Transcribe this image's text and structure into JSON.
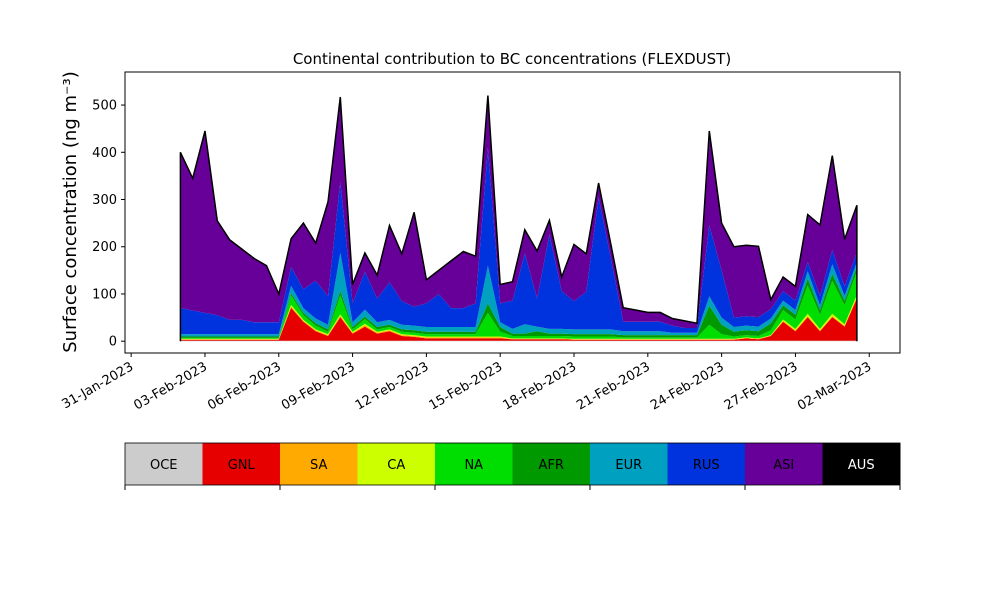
{
  "chart_data": {
    "type": "area",
    "stacked": true,
    "title": "Continental contribution to BC concentrations (FLEXDUST)",
    "ylabel": "Surface concentration (ng m⁻³)",
    "xlabel": "",
    "ylim": [
      -25,
      570
    ],
    "xlim": [
      "2023-01-30T18:00",
      "2023-03-03T06:00"
    ],
    "yticks": [
      0,
      100,
      200,
      300,
      400,
      500
    ],
    "xtick_labels": [
      "31-Jan-2023",
      "03-Feb-2023",
      "06-Feb-2023",
      "09-Feb-2023",
      "12-Feb-2023",
      "15-Feb-2023",
      "18-Feb-2023",
      "21-Feb-2023",
      "24-Feb-2023",
      "27-Feb-2023",
      "02-Mar-2023"
    ],
    "xtick_dates": [
      "2023-01-31",
      "2023-02-03",
      "2023-02-06",
      "2023-02-09",
      "2023-02-12",
      "2023-02-15",
      "2023-02-18",
      "2023-02-21",
      "2023-02-24",
      "2023-02-27",
      "2023-03-02"
    ],
    "grid": false,
    "legend_position": "below",
    "total_line_color": "#000000",
    "x": [
      "2023-02-02",
      "2023-02-02T12:00",
      "2023-02-03",
      "2023-02-03T12:00",
      "2023-02-04",
      "2023-02-04T12:00",
      "2023-02-05",
      "2023-02-05T12:00",
      "2023-02-06",
      "2023-02-06T12:00",
      "2023-02-07",
      "2023-02-07T12:00",
      "2023-02-08",
      "2023-02-08T12:00",
      "2023-02-09",
      "2023-02-09T12:00",
      "2023-02-10",
      "2023-02-10T12:00",
      "2023-02-11",
      "2023-02-11T12:00",
      "2023-02-12",
      "2023-02-12T12:00",
      "2023-02-13",
      "2023-02-13T12:00",
      "2023-02-14",
      "2023-02-14T12:00",
      "2023-02-15",
      "2023-02-15T12:00",
      "2023-02-16",
      "2023-02-16T12:00",
      "2023-02-17",
      "2023-02-17T12:00",
      "2023-02-18",
      "2023-02-18T12:00",
      "2023-02-19",
      "2023-02-19T12:00",
      "2023-02-20",
      "2023-02-20T12:00",
      "2023-02-21",
      "2023-02-21T12:00",
      "2023-02-22",
      "2023-02-22T12:00",
      "2023-02-23",
      "2023-02-23T12:00",
      "2023-02-24",
      "2023-02-24T12:00",
      "2023-02-25",
      "2023-02-25T12:00",
      "2023-02-26",
      "2023-02-26T12:00",
      "2023-02-27",
      "2023-02-27T12:00",
      "2023-02-28",
      "2023-02-28T12:00",
      "2023-03-01",
      "2023-03-01T12:00"
    ],
    "series": [
      {
        "name": "OCE",
        "color": "#cccccc",
        "values": [
          1,
          1,
          1,
          1,
          1,
          1,
          1,
          1,
          1,
          1,
          1,
          1,
          1,
          1,
          1,
          1,
          1,
          1,
          1,
          1,
          1,
          1,
          1,
          1,
          1,
          1,
          1,
          1,
          1,
          1,
          1,
          1,
          1,
          1,
          1,
          1,
          1,
          1,
          1,
          1,
          1,
          1,
          1,
          1,
          1,
          1,
          1,
          1,
          1,
          1,
          1,
          1,
          1,
          1,
          1,
          1
        ]
      },
      {
        "name": "GNL",
        "color": "#e60000",
        "values": [
          2,
          2,
          2,
          2,
          2,
          2,
          2,
          2,
          2,
          70,
          40,
          20,
          10,
          50,
          15,
          30,
          15,
          20,
          10,
          8,
          5,
          5,
          5,
          5,
          5,
          5,
          5,
          3,
          3,
          3,
          3,
          3,
          2,
          2,
          2,
          2,
          2,
          2,
          2,
          2,
          2,
          2,
          2,
          2,
          2,
          2,
          5,
          3,
          10,
          40,
          20,
          50,
          20,
          50,
          30,
          90
        ]
      },
      {
        "name": "SA",
        "color": "#ffaa00",
        "values": [
          1,
          1,
          1,
          1,
          1,
          1,
          1,
          1,
          1,
          3,
          2,
          2,
          2,
          3,
          2,
          3,
          2,
          2,
          2,
          2,
          2,
          2,
          2,
          2,
          2,
          2,
          2,
          1,
          1,
          1,
          1,
          1,
          1,
          1,
          1,
          1,
          1,
          1,
          1,
          1,
          1,
          1,
          1,
          1,
          1,
          1,
          1,
          1,
          1,
          2,
          2,
          2,
          2,
          2,
          2,
          2
        ]
      },
      {
        "name": "CA",
        "color": "#ccff00",
        "values": [
          1,
          1,
          1,
          1,
          1,
          1,
          1,
          1,
          1,
          3,
          2,
          2,
          2,
          3,
          2,
          3,
          2,
          2,
          2,
          2,
          2,
          2,
          2,
          2,
          2,
          2,
          2,
          1,
          1,
          1,
          1,
          1,
          1,
          1,
          1,
          1,
          1,
          1,
          1,
          1,
          1,
          1,
          1,
          1,
          1,
          1,
          1,
          1,
          1,
          3,
          3,
          5,
          3,
          5,
          3,
          5
        ]
      },
      {
        "name": "NA",
        "color": "#00dd00",
        "values": [
          2,
          2,
          2,
          2,
          2,
          2,
          2,
          2,
          2,
          20,
          10,
          8,
          5,
          40,
          5,
          10,
          5,
          5,
          5,
          5,
          5,
          5,
          5,
          5,
          5,
          50,
          10,
          5,
          5,
          5,
          5,
          5,
          5,
          5,
          5,
          5,
          3,
          3,
          3,
          3,
          3,
          3,
          3,
          30,
          10,
          5,
          5,
          5,
          10,
          20,
          20,
          60,
          30,
          70,
          40,
          50
        ]
      },
      {
        "name": "AFR",
        "color": "#009900",
        "values": [
          3,
          3,
          3,
          3,
          3,
          3,
          3,
          3,
          3,
          5,
          5,
          5,
          5,
          10,
          5,
          5,
          5,
          5,
          5,
          5,
          5,
          5,
          5,
          5,
          5,
          20,
          10,
          5,
          5,
          10,
          5,
          5,
          5,
          5,
          5,
          5,
          5,
          5,
          5,
          5,
          5,
          5,
          5,
          40,
          20,
          10,
          10,
          10,
          15,
          10,
          10,
          15,
          10,
          15,
          10,
          10
        ]
      },
      {
        "name": "EUR",
        "color": "#00a0c0",
        "values": [
          5,
          5,
          5,
          5,
          5,
          5,
          5,
          5,
          5,
          15,
          10,
          10,
          10,
          80,
          10,
          15,
          10,
          10,
          10,
          10,
          10,
          10,
          10,
          10,
          10,
          80,
          10,
          10,
          20,
          10,
          10,
          10,
          10,
          10,
          10,
          10,
          8,
          8,
          8,
          8,
          5,
          5,
          5,
          20,
          15,
          10,
          10,
          10,
          10,
          10,
          10,
          15,
          10,
          20,
          10,
          10
        ]
      },
      {
        "name": "RUS",
        "color": "#0033dd",
        "values": [
          55,
          50,
          45,
          40,
          30,
          30,
          25,
          25,
          25,
          40,
          40,
          80,
          60,
          150,
          40,
          80,
          50,
          80,
          50,
          40,
          50,
          70,
          40,
          40,
          50,
          250,
          40,
          60,
          150,
          60,
          200,
          80,
          60,
          80,
          280,
          150,
          20,
          20,
          20,
          20,
          15,
          10,
          10,
          150,
          100,
          20,
          20,
          20,
          20,
          20,
          20,
          20,
          20,
          30,
          20,
          20
        ]
      },
      {
        "name": "ASI",
        "color": "#660099",
        "values": [
          330,
          280,
          385,
          200,
          170,
          150,
          135,
          120,
          60,
          60,
          140,
          80,
          200,
          180,
          40,
          40,
          50,
          120,
          100,
          200,
          50,
          50,
          100,
          120,
          100,
          110,
          40,
          40,
          50,
          100,
          30,
          30,
          120,
          80,
          30,
          30,
          30,
          25,
          20,
          20,
          15,
          15,
          10,
          200,
          100,
          150,
          150,
          150,
          20,
          30,
          30,
          100,
          150,
          200,
          100,
          100
        ]
      },
      {
        "name": "AUS",
        "color": "#000000",
        "values": [
          0,
          0,
          0,
          0,
          0,
          0,
          0,
          0,
          0,
          0,
          0,
          0,
          0,
          0,
          0,
          0,
          0,
          0,
          0,
          0,
          0,
          0,
          0,
          0,
          0,
          0,
          0,
          0,
          0,
          0,
          0,
          0,
          0,
          0,
          0,
          0,
          0,
          0,
          0,
          0,
          0,
          0,
          0,
          0,
          0,
          0,
          0,
          0,
          0,
          0,
          0,
          0,
          0,
          0,
          0,
          0
        ]
      }
    ],
    "legend_entries": [
      {
        "label": "OCE",
        "color": "#cccccc"
      },
      {
        "label": "GNL",
        "color": "#e60000"
      },
      {
        "label": "SA",
        "color": "#ffaa00"
      },
      {
        "label": "CA",
        "color": "#ccff00"
      },
      {
        "label": "NA",
        "color": "#00dd00"
      },
      {
        "label": "AFR",
        "color": "#009900"
      },
      {
        "label": "EUR",
        "color": "#00a0c0"
      },
      {
        "label": "RUS",
        "color": "#0033dd"
      },
      {
        "label": "ASI",
        "color": "#660099"
      },
      {
        "label": "AUS",
        "color": "#000000",
        "text_color": "#ffffff"
      }
    ]
  }
}
